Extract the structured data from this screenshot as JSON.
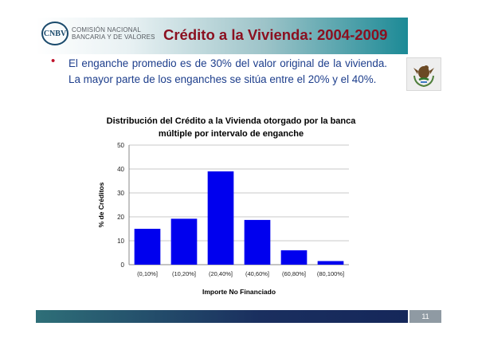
{
  "header": {
    "logo_mark": "CNBV",
    "logo_line1": "COMISIÓN NACIONAL",
    "logo_line2": "BANCARIA Y DE VALORES",
    "title": "Crédito a la Vivienda: 2004-2009"
  },
  "bullet": {
    "text": "El enganche promedio es de 30% del valor original de la vivienda. La mayor parte de los enganches se sitúa entre el 20% y el 40%."
  },
  "colors": {
    "title": "#8b1020",
    "bullet_text": "#1d3e8c",
    "bar": "#0000ee"
  },
  "chart_data": {
    "type": "bar",
    "title": "Distribución del Crédito a la Vivienda otorgado por la banca múltiple por intervalo de enganche",
    "title_lines": [
      "Distribución del Crédito a la Vivienda otorgado por la banca",
      "múltiple por intervalo de enganche"
    ],
    "categories": [
      "(0,10%]",
      "(10,20%]",
      "(20,40%]",
      "(40,60%]",
      "(60,80%]",
      "(80,100%]"
    ],
    "values": [
      15,
      19.2,
      39,
      18.7,
      6,
      1.5
    ],
    "xlabel": "Importe No Financiado",
    "ylabel": "% de Créditos",
    "ylim": [
      0,
      50
    ],
    "yticks": [
      0,
      10,
      20,
      30,
      40,
      50
    ],
    "grid": true,
    "legend": "none"
  },
  "footer": {
    "page_number": "11"
  }
}
